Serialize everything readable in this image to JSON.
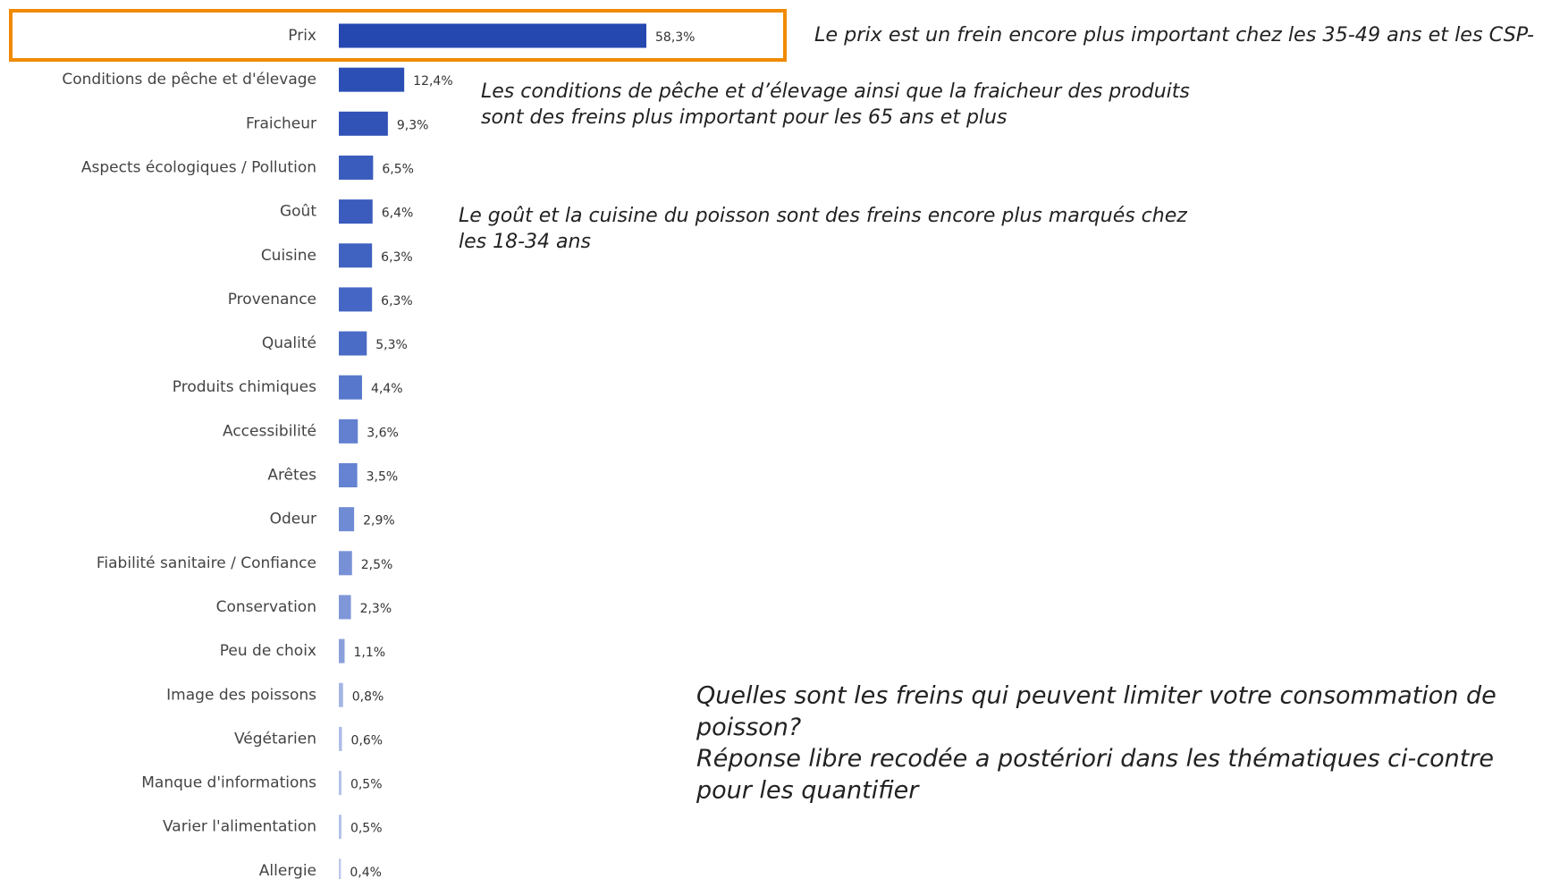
{
  "chart_data": {
    "type": "bar",
    "orientation": "horizontal",
    "categories": [
      "Prix",
      "Conditions de pêche et d'élevage",
      "Fraicheur",
      "Aspects écologiques / Pollution",
      "Goût",
      "Cuisine",
      "Provenance",
      "Qualité",
      "Produits chimiques",
      "Accessibilité",
      "Arêtes",
      "Odeur",
      "Fiabilité sanitaire / Confiance",
      "Conservation",
      "Peu de choix",
      "Image des poissons",
      "Végétarien",
      "Manque d'informations",
      "Varier l'alimentation",
      "Allergie"
    ],
    "values": [
      58.3,
      12.4,
      9.3,
      6.5,
      6.4,
      6.3,
      6.3,
      5.3,
      4.4,
      3.6,
      3.5,
      2.9,
      2.5,
      2.3,
      1.1,
      0.8,
      0.6,
      0.5,
      0.5,
      0.4
    ],
    "value_labels": [
      "58,3%",
      "12,4%",
      "9,3%",
      "6,5%",
      "6,4%",
      "6,3%",
      "6,3%",
      "5,3%",
      "4,4%",
      "3,6%",
      "3,5%",
      "2,9%",
      "2,5%",
      "2,3%",
      "1,1%",
      "0,8%",
      "0,6%",
      "0,5%",
      "0,5%",
      "0,4%"
    ],
    "colors": [
      "#2447b0",
      "#2c4fb6",
      "#3153b8",
      "#3a5cbd",
      "#3b5cbd",
      "#4062c0",
      "#4566c4",
      "#4a6bc6",
      "#5677cb",
      "#6380d0",
      "#6583d2",
      "#6f8bd4",
      "#7891d6",
      "#7f97d8",
      "#8aa0dc",
      "#a3b5e4",
      "#aebde8",
      "#b3c2e9",
      "#b3c2e9",
      "#bcc8eb"
    ],
    "highlight_color": "#f08a00",
    "annotations": [
      {
        "lines": [
          "Le prix est un frein encore plus important chez les 35-49 ans et les CSP-"
        ]
      },
      {
        "lines": [
          "Les conditions de pêche et d’élevage ainsi que la fraicheur des produits",
          "sont des freins plus important pour les 65 ans et plus"
        ]
      },
      {
        "lines": [
          "Le goût et la cuisine du poisson sont des freins encore plus marqués chez",
          "les 18-34 ans"
        ]
      }
    ],
    "question": [
      "Quelles sont les freins qui peuvent limiter votre consommation de",
      "poisson?",
      "Réponse libre recodée a postériori dans les thématiques ci-contre",
      "pour les quantifier"
    ]
  }
}
